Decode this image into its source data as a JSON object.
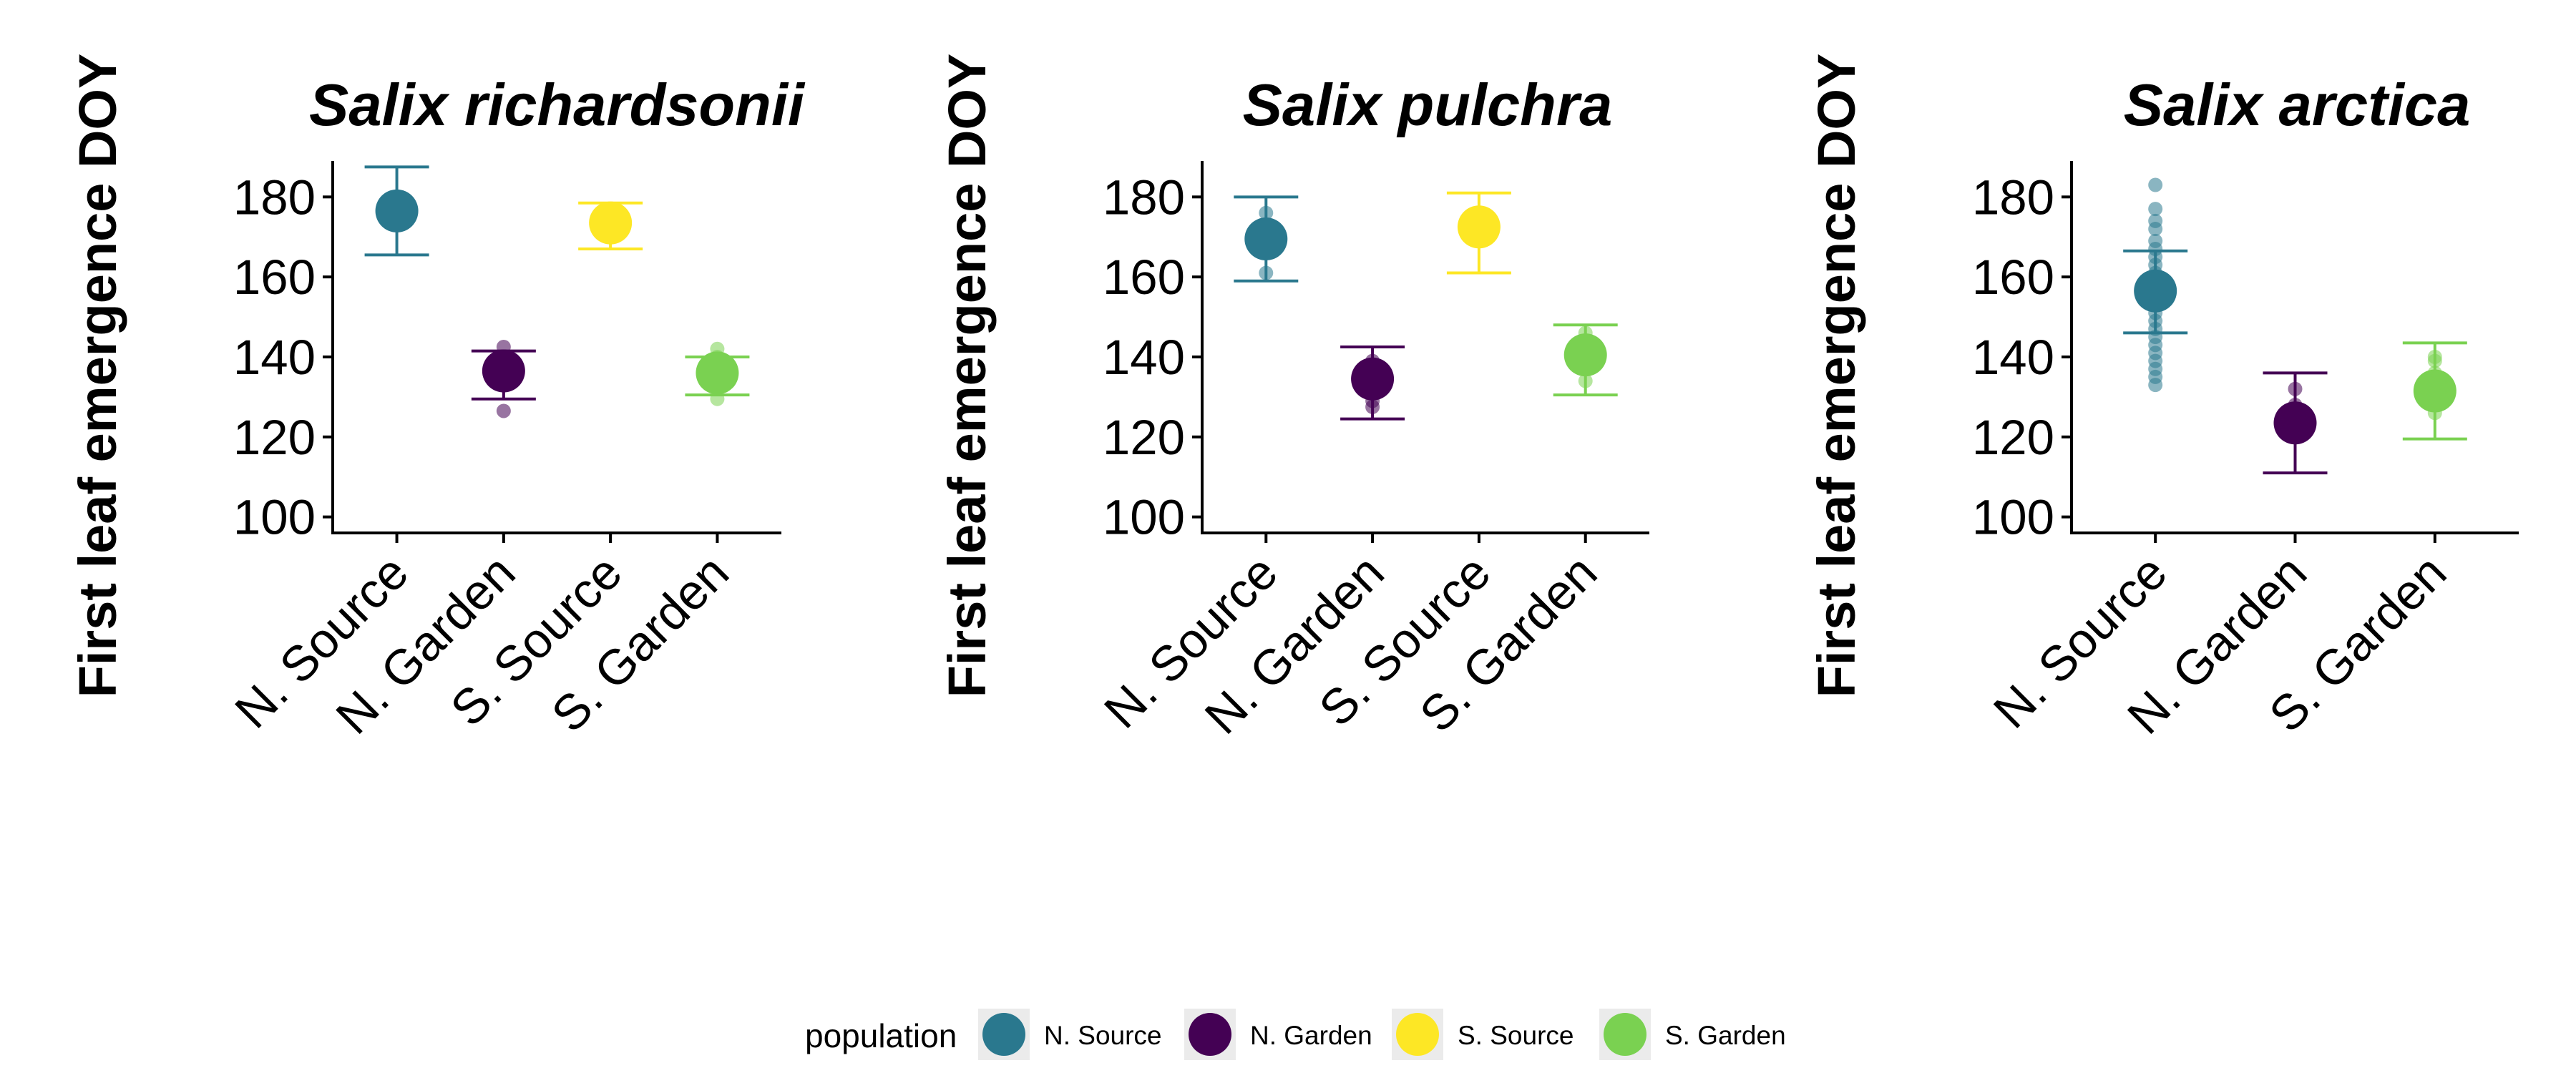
{
  "chart_data": [
    {
      "type": "scatter",
      "title": "Salix richardsonii",
      "ylabel": "First leaf emergence DOY",
      "xlabel": "",
      "categories": [
        "N. Source",
        "N. Garden",
        "S. Source",
        "S. Garden"
      ],
      "colors": [
        "#2A788E",
        "#440154",
        "#FDE725",
        "#7AD151"
      ],
      "ylim": [
        96,
        189
      ],
      "yticks": [
        100,
        120,
        140,
        160,
        180
      ],
      "means": [
        176.5,
        136.5,
        173.5,
        136.0
      ],
      "lower": [
        165.5,
        129.5,
        167.0,
        130.5
      ],
      "upper": [
        187.5,
        141.5,
        178.5,
        140.0
      ],
      "points": [
        [
          176,
          177
        ],
        [
          126.5,
          134,
          137,
          139,
          142.5
        ],
        [
          172,
          174,
          175
        ],
        [
          129.5,
          133,
          136,
          138,
          140,
          142
        ]
      ]
    },
    {
      "type": "scatter",
      "title": "Salix pulchra",
      "ylabel": "First leaf emergence DOY",
      "xlabel": "",
      "categories": [
        "N. Source",
        "N. Garden",
        "S. Source",
        "S. Garden"
      ],
      "colors": [
        "#2A788E",
        "#440154",
        "#FDE725",
        "#7AD151"
      ],
      "ylim": [
        96,
        189
      ],
      "yticks": [
        100,
        120,
        140,
        160,
        180
      ],
      "means": [
        169.5,
        134.5,
        172.5,
        140.5
      ],
      "lower": [
        159.0,
        124.5,
        161.0,
        130.5
      ],
      "upper": [
        180.0,
        142.5,
        181.0,
        148.0
      ],
      "points": [
        [
          161,
          166,
          170,
          173,
          176
        ],
        [
          127.5,
          129,
          132,
          136,
          139
        ],
        [
          170,
          173,
          176
        ],
        [
          134,
          137,
          140,
          143,
          146
        ]
      ]
    },
    {
      "type": "scatter",
      "title": "Salix arctica",
      "ylabel": "First leaf emergence DOY",
      "xlabel": "",
      "categories": [
        "N. Source",
        "N. Garden",
        "S. Garden"
      ],
      "colors": [
        "#2A788E",
        "#440154",
        "#7AD151"
      ],
      "ylim": [
        96,
        189
      ],
      "yticks": [
        100,
        120,
        140,
        160,
        180
      ],
      "means": [
        156.5,
        123.5,
        131.5
      ],
      "lower": [
        146.0,
        111.0,
        119.5
      ],
      "upper": [
        166.5,
        136.0,
        143.5
      ],
      "points": [
        [
          133,
          135,
          137,
          139,
          141,
          143,
          145,
          147,
          149,
          151,
          153,
          155,
          157,
          159,
          161,
          163,
          165,
          167,
          169,
          172,
          174,
          177,
          183
        ],
        [
          120,
          124,
          128,
          132
        ],
        [
          126,
          130,
          133,
          136,
          139,
          140
        ]
      ]
    }
  ],
  "legend": {
    "title": "population",
    "position": "bottom",
    "items": [
      {
        "label": "N. Source",
        "color": "#2A788E"
      },
      {
        "label": "N. Garden",
        "color": "#440154"
      },
      {
        "label": "S. Source",
        "color": "#FDE725"
      },
      {
        "label": "S. Garden",
        "color": "#7AD151"
      }
    ]
  }
}
